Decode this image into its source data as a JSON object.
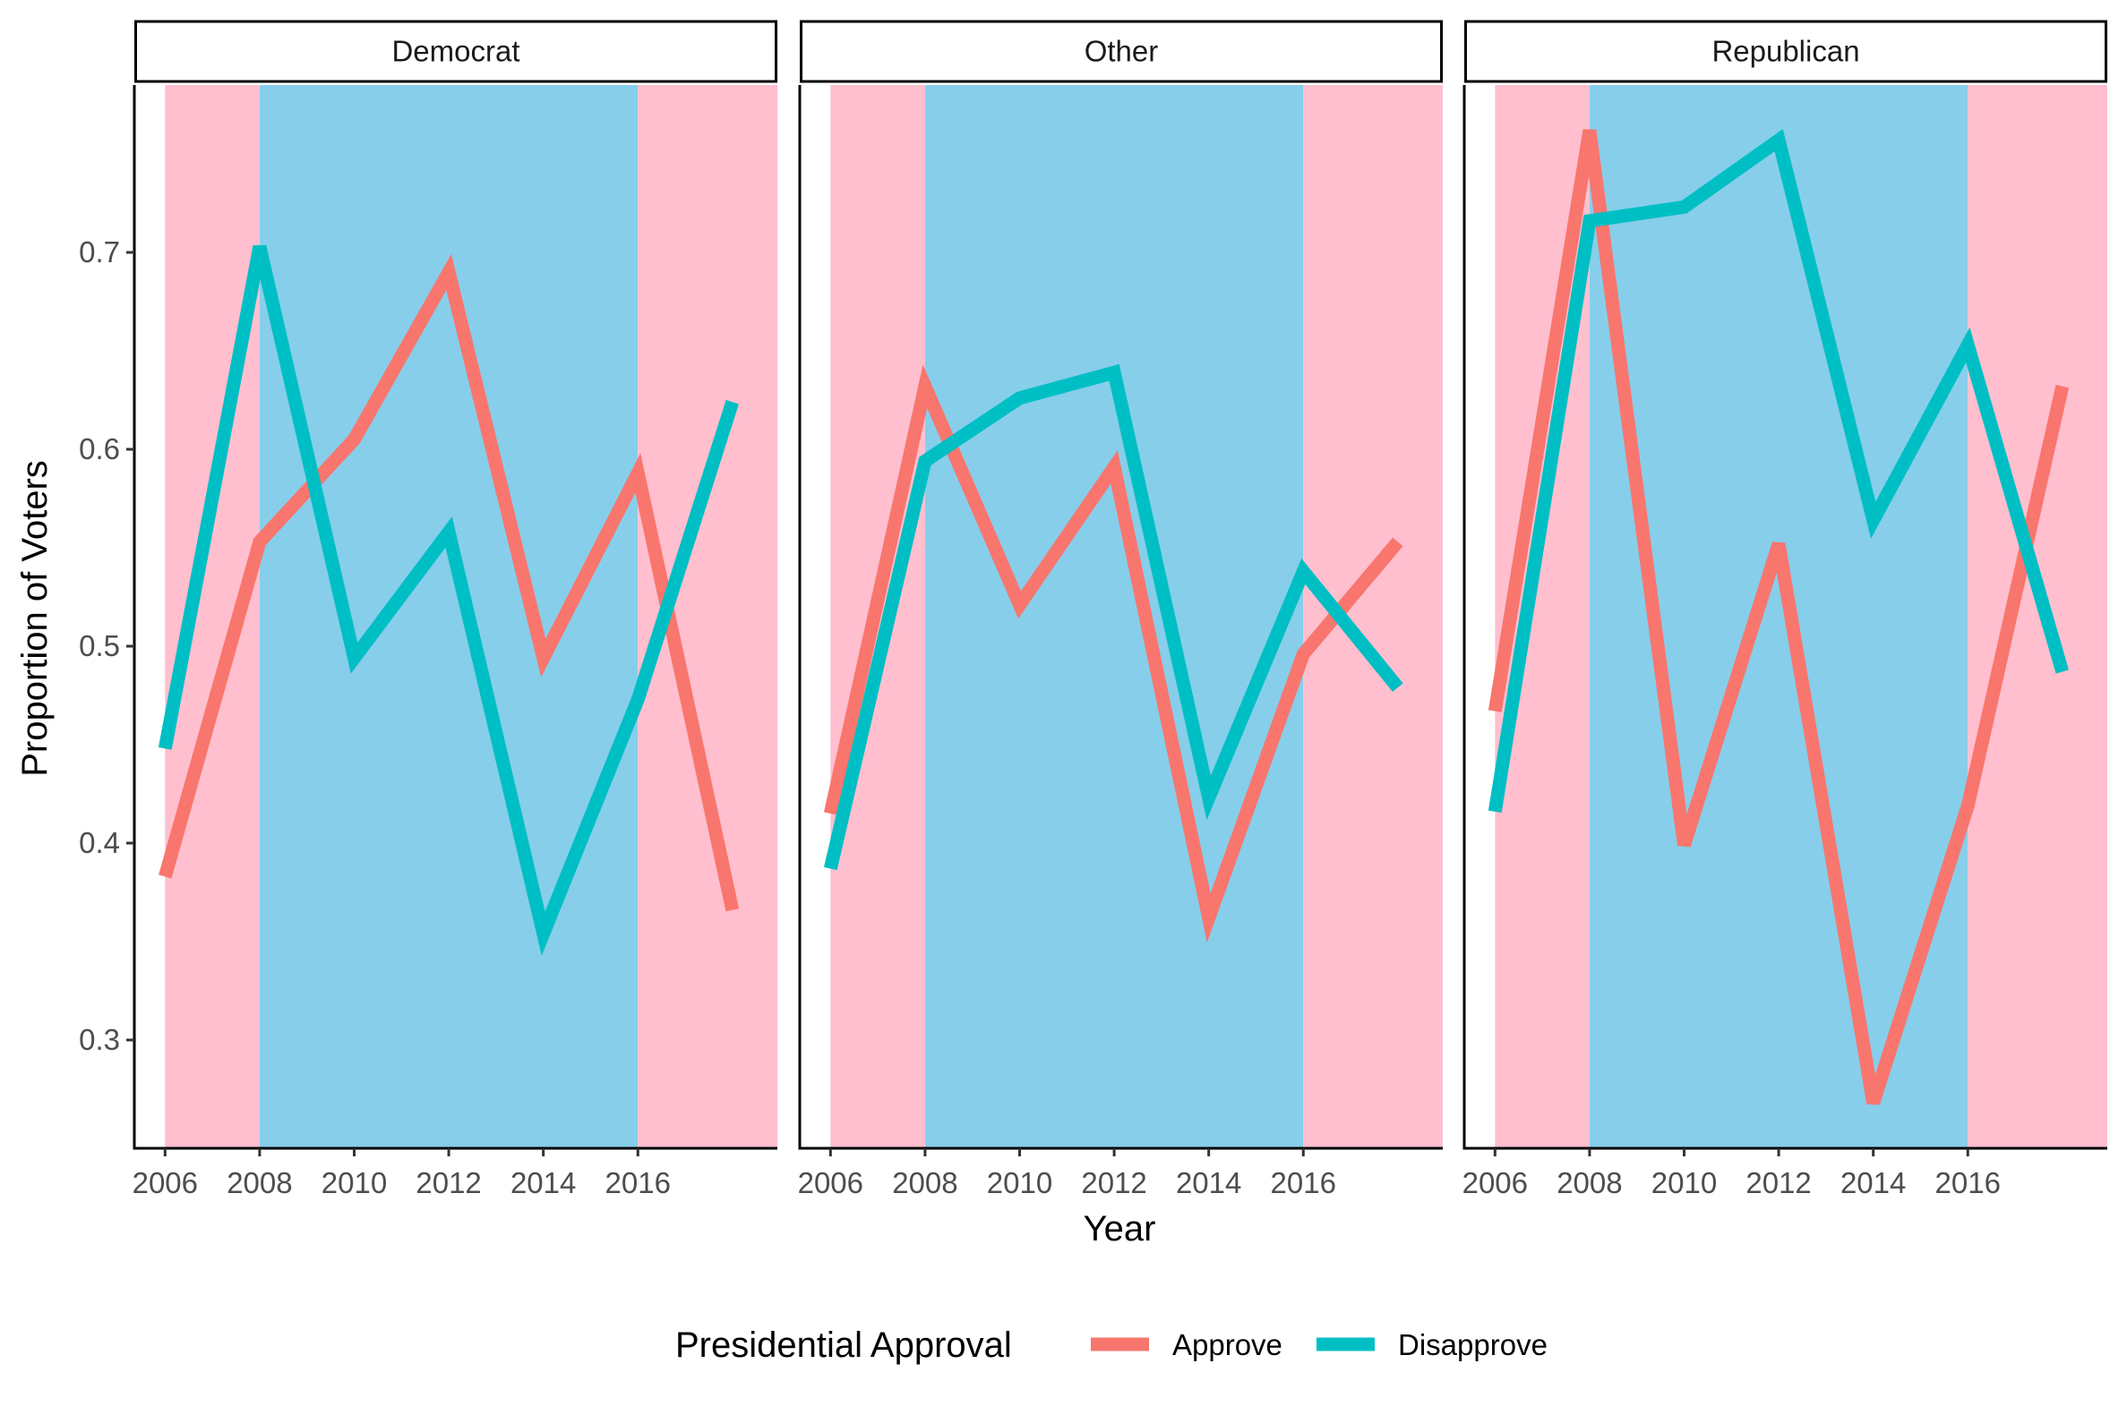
{
  "chart_data": {
    "type": "line",
    "xlabel": "Year",
    "ylabel": "Proportion of Voters",
    "x_ticks": [
      "2006",
      "2008",
      "2010",
      "2012",
      "2014",
      "2016"
    ],
    "y_ticks": [
      "0.3",
      "0.4",
      "0.5",
      "0.6",
      "0.7"
    ],
    "xlim": [
      2005.35,
      2018.95
    ],
    "ylim": [
      0.245,
      0.785
    ],
    "x": [
      2006,
      2008,
      2010,
      2012,
      2014,
      2016,
      2018
    ],
    "background_bands": [
      {
        "from": 2006,
        "to": 2008,
        "color": "#ffbfcf"
      },
      {
        "from": 2008,
        "to": 2016,
        "color": "#87ceeb"
      },
      {
        "from": 2016,
        "to": 2019,
        "color": "#ffbfcf"
      }
    ],
    "facets": [
      {
        "label": "Democrat",
        "series": [
          {
            "name": "Approve",
            "color": "#f8766d",
            "values": [
              0.383,
              0.553,
              0.605,
              0.69,
              0.494,
              0.588,
              0.366
            ]
          },
          {
            "name": "Disapprove",
            "color": "#00bfc4",
            "values": [
              0.448,
              0.703,
              0.494,
              0.558,
              0.354,
              0.473,
              0.624
            ]
          }
        ]
      },
      {
        "label": "Other",
        "series": [
          {
            "name": "Approve",
            "color": "#f8766d",
            "values": [
              0.415,
              0.632,
              0.521,
              0.591,
              0.362,
              0.496,
              0.553
            ]
          },
          {
            "name": "Disapprove",
            "color": "#00bfc4",
            "values": [
              0.387,
              0.594,
              0.626,
              0.639,
              0.423,
              0.538,
              0.479
            ]
          }
        ]
      },
      {
        "label": "Republican",
        "series": [
          {
            "name": "Approve",
            "color": "#f8766d",
            "values": [
              0.467,
              0.762,
              0.399,
              0.552,
              0.268,
              0.419,
              0.632
            ]
          },
          {
            "name": "Disapprove",
            "color": "#00bfc4",
            "values": [
              0.416,
              0.716,
              0.723,
              0.757,
              0.564,
              0.653,
              0.487
            ]
          }
        ]
      }
    ],
    "legend": {
      "title": "Presidential Approval",
      "position": "bottom",
      "entries": [
        {
          "label": "Approve",
          "color": "#f8766d"
        },
        {
          "label": "Disapprove",
          "color": "#00bfc4"
        }
      ]
    }
  }
}
